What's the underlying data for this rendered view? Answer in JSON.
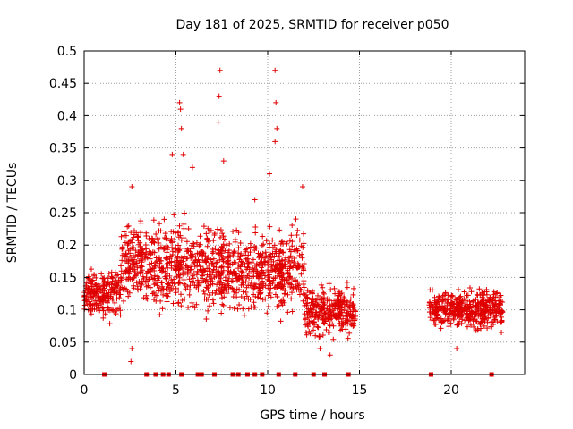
{
  "chart_data": {
    "type": "scatter",
    "title": "Day 181 of 2025, SRMTID for receiver p050",
    "xlabel": "GPS time / hours",
    "ylabel": "SRMTID / TECUs",
    "xlim": [
      0,
      24
    ],
    "ylim": [
      0,
      0.5
    ],
    "xticks": [
      0,
      5,
      10,
      15,
      20
    ],
    "yticks": [
      0,
      0.05,
      0.1,
      0.15,
      0.2,
      0.25,
      0.3,
      0.35,
      0.4,
      0.45,
      0.5
    ],
    "grid": true,
    "marker": "+",
    "marker_color": "#e00000",
    "gap_markers_note": "zero-valued square markers along the x-axis",
    "zero_markers_x": [
      1.1,
      3.4,
      3.9,
      4.3,
      4.6,
      5.3,
      6.2,
      6.4,
      7.1,
      8.1,
      8.4,
      8.9,
      9.3,
      9.7,
      10.6,
      11.5,
      12.5,
      13.1,
      14.4,
      18.9,
      22.2
    ],
    "series": [
      {
        "name": "SRMTID",
        "segments": [
          {
            "x_range": [
              0.0,
              2.0
            ],
            "center": 0.125,
            "spread": 0.05
          },
          {
            "x_range": [
              2.0,
              4.0
            ],
            "center": 0.17,
            "spread": 0.08
          },
          {
            "x_range": [
              4.0,
              6.0
            ],
            "center": 0.17,
            "spread": 0.09
          },
          {
            "x_range": [
              6.0,
              8.5
            ],
            "center": 0.16,
            "spread": 0.09
          },
          {
            "x_range": [
              8.5,
              12.0
            ],
            "center": 0.16,
            "spread": 0.09
          },
          {
            "x_range": [
              12.0,
              14.8
            ],
            "center": 0.1,
            "spread": 0.05
          },
          {
            "x_range": [
              18.8,
              22.8
            ],
            "center": 0.1,
            "spread": 0.04
          }
        ],
        "points": [
          [
            5.2,
            0.42
          ],
          [
            5.25,
            0.41
          ],
          [
            5.3,
            0.38
          ],
          [
            7.4,
            0.47
          ],
          [
            7.35,
            0.43
          ],
          [
            7.3,
            0.39
          ],
          [
            10.4,
            0.47
          ],
          [
            10.45,
            0.42
          ],
          [
            10.5,
            0.38
          ],
          [
            10.4,
            0.36
          ],
          [
            4.8,
            0.34
          ],
          [
            5.4,
            0.34
          ],
          [
            5.9,
            0.32
          ],
          [
            7.6,
            0.33
          ],
          [
            10.1,
            0.31
          ],
          [
            11.9,
            0.29
          ],
          [
            2.6,
            0.29
          ],
          [
            9.3,
            0.27
          ],
          [
            2.55,
            0.02
          ],
          [
            2.6,
            0.04
          ],
          [
            12.85,
            0.04
          ],
          [
            13.4,
            0.03
          ],
          [
            20.3,
            0.04
          ]
        ]
      }
    ]
  }
}
